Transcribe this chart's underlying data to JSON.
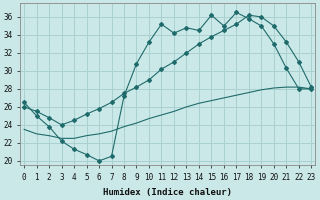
{
  "xlabel": "Humidex (Indice chaleur)",
  "bg_color": "#cbe8e8",
  "grid_color": "#aad0d0",
  "line_color": "#1f6b6b",
  "x_ticks": [
    0,
    1,
    2,
    3,
    4,
    5,
    6,
    7,
    8,
    9,
    10,
    11,
    12,
    13,
    14,
    15,
    16,
    17,
    18,
    19,
    20,
    21,
    22,
    23
  ],
  "y_ticks": [
    20,
    22,
    24,
    26,
    28,
    30,
    32,
    34,
    36
  ],
  "xlim": [
    -0.3,
    23.3
  ],
  "ylim": [
    19.5,
    37.5
  ],
  "line1": {
    "x": [
      0,
      1,
      2,
      3,
      4,
      5,
      6,
      7,
      8,
      9,
      10,
      11,
      12,
      13,
      14,
      15,
      16,
      17,
      18,
      19,
      20,
      21,
      22,
      23
    ],
    "y": [
      26.5,
      25.0,
      23.8,
      22.2,
      21.3,
      20.7,
      20.0,
      20.5,
      27.2,
      30.8,
      33.2,
      35.2,
      34.2,
      34.8,
      34.5,
      36.2,
      35.0,
      36.5,
      35.8,
      35.0,
      33.0,
      30.3,
      28.0,
      28.0
    ]
  },
  "line2": {
    "x": [
      0,
      1,
      2,
      3,
      4,
      5,
      6,
      7,
      8,
      9,
      10,
      11,
      12,
      13,
      14,
      15,
      16,
      17,
      18,
      19,
      20,
      21,
      22,
      23
    ],
    "y": [
      26.0,
      25.5,
      24.8,
      24.0,
      24.5,
      25.2,
      25.8,
      26.5,
      27.5,
      28.2,
      29.0,
      30.2,
      31.0,
      32.0,
      33.0,
      33.8,
      34.5,
      35.2,
      36.2,
      36.0,
      35.0,
      33.2,
      31.0,
      28.2
    ]
  },
  "line3": {
    "x": [
      0,
      1,
      2,
      3,
      4,
      5,
      6,
      7,
      8,
      9,
      10,
      11,
      12,
      13,
      14,
      15,
      16,
      17,
      18,
      19,
      20,
      21,
      22,
      23
    ],
    "y": [
      23.5,
      23.0,
      22.8,
      22.5,
      22.5,
      22.8,
      23.0,
      23.3,
      23.8,
      24.2,
      24.7,
      25.1,
      25.5,
      26.0,
      26.4,
      26.7,
      27.0,
      27.3,
      27.6,
      27.9,
      28.1,
      28.2,
      28.2,
      28.0
    ]
  }
}
